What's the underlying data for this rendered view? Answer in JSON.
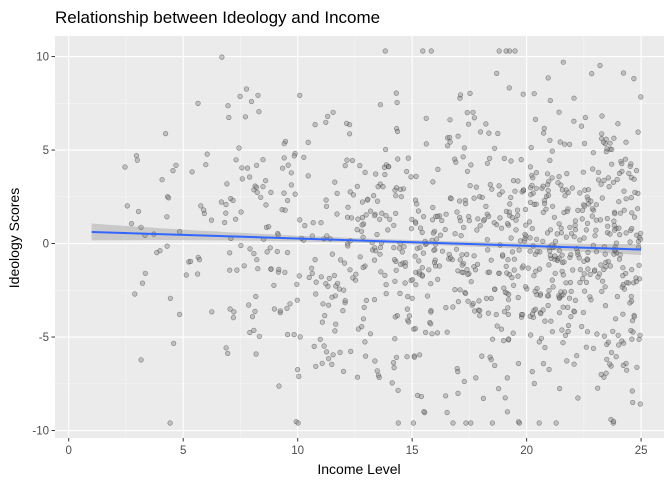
{
  "chart_data": {
    "type": "scatter",
    "title": "Relationship between Ideology and Income",
    "xlabel": "Income Level",
    "ylabel": "Ideology Scores",
    "xlim": [
      -0.6,
      26.0
    ],
    "ylim": [
      -10.4,
      11.1
    ],
    "x_ticks": [
      0,
      5,
      10,
      15,
      20,
      25
    ],
    "y_ticks": [
      -10,
      -5,
      0,
      5,
      10
    ],
    "grid": true,
    "legend": "none",
    "theme": "ggplot2-gray",
    "colors": {
      "panel_background": "#ebebeb",
      "grid_major": "#ffffff",
      "grid_minor": "#f5f5f5",
      "point_fill": "#8c8c8c",
      "point_stroke": "#333333",
      "trend_line": "#3366ff",
      "confidence_band": "#b3b3b3"
    },
    "point_alpha": 0.45,
    "n_points": 1000,
    "x_range": [
      1,
      25
    ],
    "trend": {
      "method": "linear",
      "x": [
        1,
        25
      ],
      "y": [
        0.62,
        -0.32
      ],
      "ci_halfwidth": [
        0.45,
        0.12,
        0.3
      ]
    }
  }
}
